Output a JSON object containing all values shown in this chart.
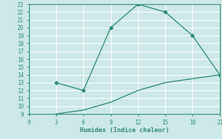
{
  "xlabel": "Humidex (Indice chaleur)",
  "line1_x": [
    3,
    6,
    9,
    12,
    15,
    18,
    21
  ],
  "line1_y": [
    13,
    12,
    20,
    23,
    22,
    19,
    14
  ],
  "line2_x": [
    3,
    6,
    9,
    12,
    15,
    18,
    21
  ],
  "line2_y": [
    9,
    9.5,
    10.5,
    12,
    13,
    13.5,
    14
  ],
  "line_color": "#2e8b74",
  "bg_color": "#cce8e8",
  "grid_color": "#ffffff",
  "xlim": [
    0,
    21
  ],
  "ylim": [
    9,
    23
  ],
  "xticks": [
    0,
    3,
    6,
    9,
    12,
    15,
    18,
    21
  ],
  "yticks": [
    9,
    10,
    11,
    12,
    13,
    14,
    15,
    16,
    17,
    18,
    19,
    20,
    21,
    22,
    23
  ],
  "xlabel_fontsize": 6.5,
  "tick_fontsize": 5.5,
  "marker": "D",
  "marker_size": 2.5,
  "linewidth": 1.0
}
